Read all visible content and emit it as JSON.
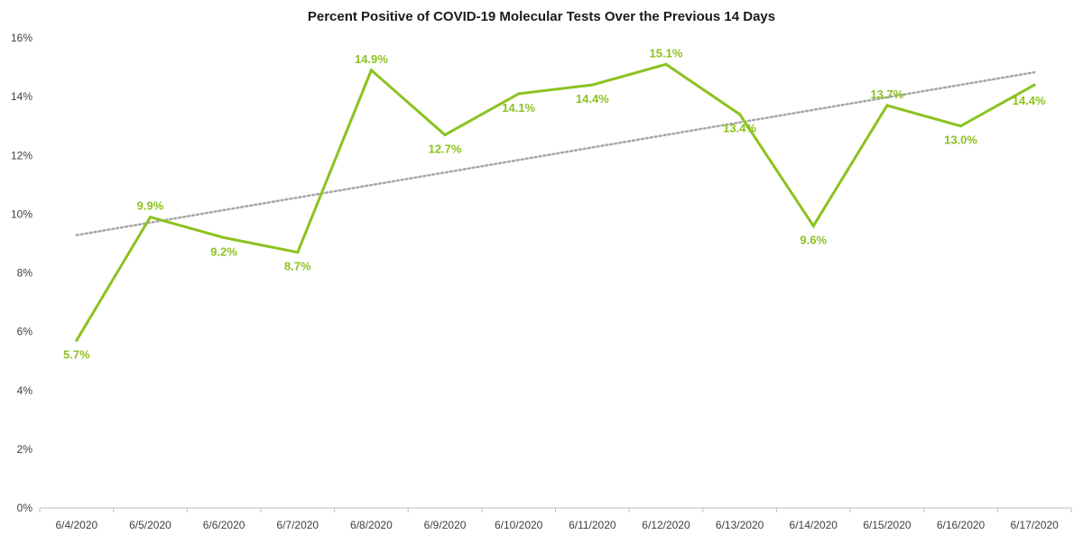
{
  "chart_data": {
    "type": "line",
    "title": "Percent Positive of COVID-19 Molecular Tests Over the Previous 14 Days",
    "xlabel": "",
    "ylabel": "",
    "categories": [
      "6/4/2020",
      "6/5/2020",
      "6/6/2020",
      "6/7/2020",
      "6/8/2020",
      "6/9/2020",
      "6/10/2020",
      "6/11/2020",
      "6/12/2020",
      "6/13/2020",
      "6/14/2020",
      "6/15/2020",
      "6/16/2020",
      "6/17/2020"
    ],
    "series": [
      {
        "values": [
          5.7,
          9.9,
          9.2,
          8.7,
          14.9,
          12.7,
          14.1,
          14.4,
          15.1,
          13.4,
          9.6,
          13.7,
          13.0,
          14.4
        ],
        "data_labels": [
          "5.7%",
          "9.9%",
          "9.2%",
          "8.7%",
          "14.9%",
          "12.7%",
          "14.1%",
          "14.4%",
          "15.1%",
          "13.4%",
          "9.6%",
          "13.7%",
          "13.0%",
          "14.4%"
        ],
        "color": "#8cc21f"
      }
    ],
    "trendline": {
      "type": "linear",
      "style": "dotted",
      "color": "#a6a6a6"
    },
    "ylim": [
      0,
      16
    ],
    "yticks": [
      0,
      2,
      4,
      6,
      8,
      10,
      12,
      14,
      16
    ],
    "ytick_labels": [
      "0%",
      "2%",
      "4%",
      "6%",
      "8%",
      "10%",
      "12%",
      "14%",
      "16%"
    ],
    "grid": false,
    "legend": "none",
    "axis_color": "#bfbfbf"
  }
}
